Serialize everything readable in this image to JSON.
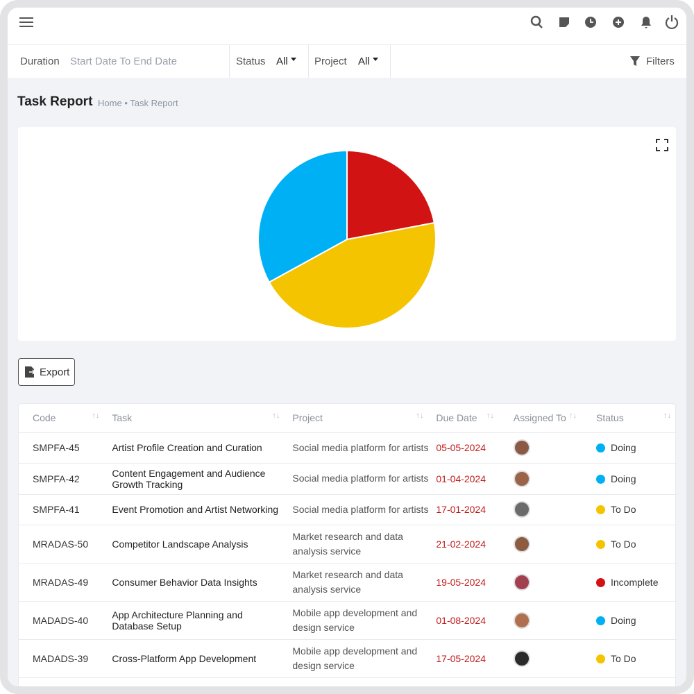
{
  "header": {
    "filters": {
      "duration_label": "Duration",
      "duration_placeholder": "Start Date To End Date",
      "status_label": "Status",
      "status_value": "All",
      "project_label": "Project",
      "project_value": "All",
      "filters_button": "Filters"
    }
  },
  "page": {
    "title": "Task Report",
    "breadcrumb": [
      "Home",
      "Task Report"
    ],
    "breadcrumb_separator": "•"
  },
  "chart_data": {
    "type": "pie",
    "values": [
      22,
      45,
      33
    ],
    "colors": [
      "#d21313",
      "#f5c400",
      "#00b0f5"
    ]
  },
  "export_button": "Export",
  "table": {
    "columns": [
      "Code",
      "Task",
      "Project",
      "Due Date",
      "Assigned To",
      "Status"
    ],
    "rows": [
      {
        "code": "SMPFA-45",
        "task": "Artist Profile Creation and Curation",
        "project": "Social media platform for artists",
        "due_date": "05-05-2024",
        "status": "Doing",
        "status_color": "#00b0f5"
      },
      {
        "code": "SMPFA-42",
        "task": "Content Engagement and Audience Growth Tracking",
        "project": "Social media platform for artists",
        "due_date": "01-04-2024",
        "status": "Doing",
        "status_color": "#00b0f5"
      },
      {
        "code": "SMPFA-41",
        "task": "Event Promotion and Artist Networking",
        "project": "Social media platform for artists",
        "due_date": "17-01-2024",
        "status": "To Do",
        "status_color": "#f5c400"
      },
      {
        "code": "MRADAS-50",
        "task": "Competitor Landscape Analysis",
        "project": "Market research and data analysis service",
        "due_date": "21-02-2024",
        "status": "To Do",
        "status_color": "#f5c400"
      },
      {
        "code": "MRADAS-49",
        "task": "Consumer Behavior Data Insights",
        "project": "Market research and data analysis service",
        "due_date": "19-05-2024",
        "status": "Incomplete",
        "status_color": "#d21313"
      },
      {
        "code": "MADADS-40",
        "task": "App Architecture Planning and Database Setup",
        "project": "Mobile app development and design service",
        "due_date": "01-08-2024",
        "status": "Doing",
        "status_color": "#00b0f5"
      },
      {
        "code": "MADADS-39",
        "task": "Cross-Platform App Development",
        "project": "Mobile app development and design service",
        "due_date": "17-05-2024",
        "status": "To Do",
        "status_color": "#f5c400"
      }
    ]
  }
}
